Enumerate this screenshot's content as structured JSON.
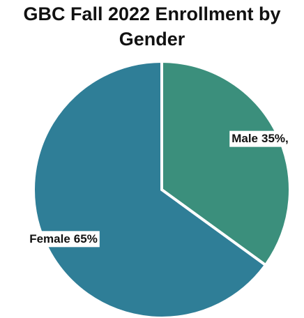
{
  "chart_data": {
    "type": "pie",
    "title": "GBC Fall 2022 Enrollment by Gender",
    "categories": [
      "Male",
      "Female"
    ],
    "values": [
      35,
      65
    ],
    "value_labels": [
      "35%,",
      "65%"
    ],
    "colors": [
      "#3b8f7c",
      "#2f7e97"
    ]
  }
}
